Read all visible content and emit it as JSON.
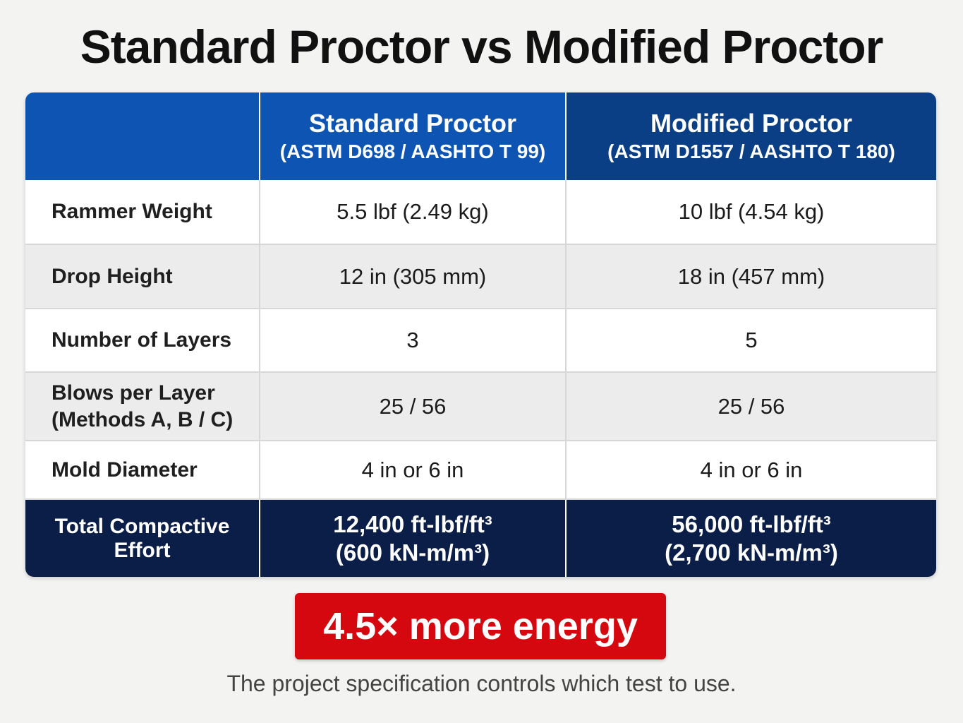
{
  "title": "Standard Proctor vs Modified Proctor",
  "table": {
    "columns": [
      {
        "name": "Standard Proctor",
        "standard": "(ASTM D698 / AASHTO T 99)"
      },
      {
        "name": "Modified Proctor",
        "standard": "(ASTM D1557 / AASHTO T 180)"
      }
    ],
    "rows": [
      {
        "label": "Rammer Weight",
        "sublabel": "",
        "standard": "5.5 lbf (2.49 kg)",
        "modified": "10 lbf (4.54 kg)"
      },
      {
        "label": "Drop Height",
        "sublabel": "",
        "standard": "12 in (305 mm)",
        "modified": "18 in (457 mm)"
      },
      {
        "label": "Number of Layers",
        "sublabel": "",
        "standard": "3",
        "modified": "5"
      },
      {
        "label": "Blows per Layer",
        "sublabel": "(Methods A, B / C)",
        "standard": "25 / 56",
        "modified": "25 / 56"
      },
      {
        "label": "Mold Diameter",
        "sublabel": "",
        "standard": "4 in or 6 in",
        "modified": "4 in or 6 in"
      }
    ],
    "total": {
      "label": "Total Compactive Effort",
      "standard_imperial": "12,400 ft-lbf/ft³",
      "standard_metric": "(600 kN-m/m³)",
      "modified_imperial": "56,000 ft-lbf/ft³",
      "modified_metric": "(2,700 kN-m/m³)"
    }
  },
  "callout": "4.5× more energy",
  "footnote": "The project specification controls which test to use.",
  "colors": {
    "header_blue": "#0e54b3",
    "header_dark_blue": "#0a3f86",
    "total_navy": "#0b1e47",
    "callout_red": "#d6080f"
  }
}
